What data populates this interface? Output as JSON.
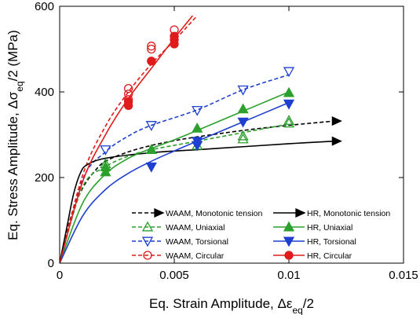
{
  "chart_data": {
    "type": "scatter",
    "xlabel_main": "Eq. Strain Amplitude, Δε",
    "xlabel_sub": "eq",
    "xlabel_end": "/2",
    "ylabel_main": "Eq. Stress Amplitude, Δσ",
    "ylabel_sub": "eq",
    "ylabel_end": "/2 (MPa)",
    "xlim": [
      0,
      0.015
    ],
    "ylim": [
      0,
      600
    ],
    "xticks": [
      0,
      0.005,
      0.01,
      0.015
    ],
    "xtick_labels": [
      "0",
      "0.005",
      "0.01",
      "0.015"
    ],
    "yticks": [
      0,
      200,
      400,
      600
    ],
    "ytick_labels": [
      "0",
      "200",
      "400",
      "600"
    ],
    "legend_position": "lower-right",
    "series": [
      {
        "name": "WAAM, Monotonic tension",
        "color": "#000000",
        "line": "dashed",
        "marker": "arrow",
        "curve": [
          [
            0,
            0
          ],
          [
            0.0005,
            110
          ],
          [
            0.001,
            175
          ],
          [
            0.0015,
            213
          ],
          [
            0.002,
            238
          ],
          [
            0.003,
            260
          ],
          [
            0.004,
            275
          ],
          [
            0.005,
            286
          ],
          [
            0.006,
            295
          ],
          [
            0.008,
            310
          ],
          [
            0.01,
            322
          ],
          [
            0.012,
            332
          ]
        ],
        "points": []
      },
      {
        "name": "WAAM, Uniaxial",
        "color": "#2ca02c",
        "line": "dashed",
        "marker": "triangle-up-open",
        "curve": [
          [
            0,
            0
          ],
          [
            0.001,
            178
          ],
          [
            0.002,
            225
          ],
          [
            0.003,
            250
          ],
          [
            0.004,
            265
          ],
          [
            0.006,
            285
          ],
          [
            0.008,
            305
          ],
          [
            0.01,
            325
          ]
        ],
        "points": [
          [
            0.002,
            232
          ],
          [
            0.004,
            265
          ],
          [
            0.006,
            275
          ],
          [
            0.008,
            290
          ],
          [
            0.008,
            297
          ],
          [
            0.01,
            327
          ],
          [
            0.01,
            333
          ]
        ]
      },
      {
        "name": "WAAM, Torsional",
        "color": "#1f3fd1",
        "line": "dashed",
        "marker": "triangle-down-open",
        "curve": [
          [
            0,
            0
          ],
          [
            0.001,
            195
          ],
          [
            0.002,
            260
          ],
          [
            0.003,
            297
          ],
          [
            0.004,
            322
          ],
          [
            0.006,
            358
          ],
          [
            0.008,
            405
          ],
          [
            0.01,
            440
          ]
        ],
        "points": [
          [
            0.002,
            265
          ],
          [
            0.004,
            322
          ],
          [
            0.006,
            357
          ],
          [
            0.008,
            405
          ],
          [
            0.01,
            448
          ]
        ]
      },
      {
        "name": "WAAM, Circular",
        "color": "#e01b1b",
        "line": "dashed",
        "marker": "circle-open",
        "curve": [
          [
            0,
            0
          ],
          [
            0.001,
            205
          ],
          [
            0.002,
            320
          ],
          [
            0.003,
            400
          ],
          [
            0.004,
            465
          ],
          [
            0.005,
            520
          ],
          [
            0.006,
            578
          ]
        ],
        "points": [
          [
            0.003,
            382
          ],
          [
            0.003,
            395
          ],
          [
            0.003,
            408
          ],
          [
            0.004,
            500
          ],
          [
            0.004,
            507
          ],
          [
            0.005,
            545
          ]
        ]
      },
      {
        "name": "HR, Monotonic tension",
        "color": "#000000",
        "line": "solid",
        "marker": "arrow",
        "curve": [
          [
            0,
            0
          ],
          [
            0.0003,
            80
          ],
          [
            0.0006,
            160
          ],
          [
            0.0009,
            210
          ],
          [
            0.0012,
            230
          ],
          [
            0.002,
            245
          ],
          [
            0.004,
            258
          ],
          [
            0.006,
            265
          ],
          [
            0.008,
            272
          ],
          [
            0.01,
            279
          ],
          [
            0.012,
            285
          ]
        ],
        "points": []
      },
      {
        "name": "HR, Uniaxial",
        "color": "#2ca02c",
        "line": "solid",
        "marker": "triangle-up-filled",
        "curve": [
          [
            0,
            0
          ],
          [
            0.001,
            140
          ],
          [
            0.002,
            208
          ],
          [
            0.003,
            245
          ],
          [
            0.004,
            268
          ],
          [
            0.005,
            288
          ],
          [
            0.006,
            310
          ],
          [
            0.008,
            355
          ],
          [
            0.01,
            400
          ]
        ],
        "points": [
          [
            0.002,
            213
          ],
          [
            0.002,
            225
          ],
          [
            0.004,
            265
          ],
          [
            0.006,
            315
          ],
          [
            0.008,
            360
          ],
          [
            0.01,
            398
          ]
        ]
      },
      {
        "name": "HR, Torsional",
        "color": "#1f3fd1",
        "line": "solid",
        "marker": "triangle-down-filled",
        "curve": [
          [
            0,
            0
          ],
          [
            0.001,
            110
          ],
          [
            0.002,
            172
          ],
          [
            0.003,
            210
          ],
          [
            0.004,
            238
          ],
          [
            0.005,
            262
          ],
          [
            0.006,
            285
          ],
          [
            0.008,
            330
          ],
          [
            0.01,
            375
          ]
        ],
        "points": [
          [
            0.004,
            225
          ],
          [
            0.006,
            275
          ],
          [
            0.006,
            285
          ],
          [
            0.008,
            330
          ],
          [
            0.01,
            372
          ]
        ]
      },
      {
        "name": "HR, Circular",
        "color": "#e01b1b",
        "line": "solid",
        "marker": "circle-filled",
        "curve": [
          [
            0,
            0
          ],
          [
            0.001,
            190
          ],
          [
            0.002,
            300
          ],
          [
            0.003,
            385
          ],
          [
            0.004,
            455
          ],
          [
            0.005,
            525
          ],
          [
            0.0058,
            578
          ]
        ],
        "points": [
          [
            0.003,
            368
          ],
          [
            0.003,
            377
          ],
          [
            0.004,
            472
          ],
          [
            0.005,
            512
          ],
          [
            0.005,
            522
          ],
          [
            0.005,
            530
          ]
        ]
      }
    ]
  }
}
